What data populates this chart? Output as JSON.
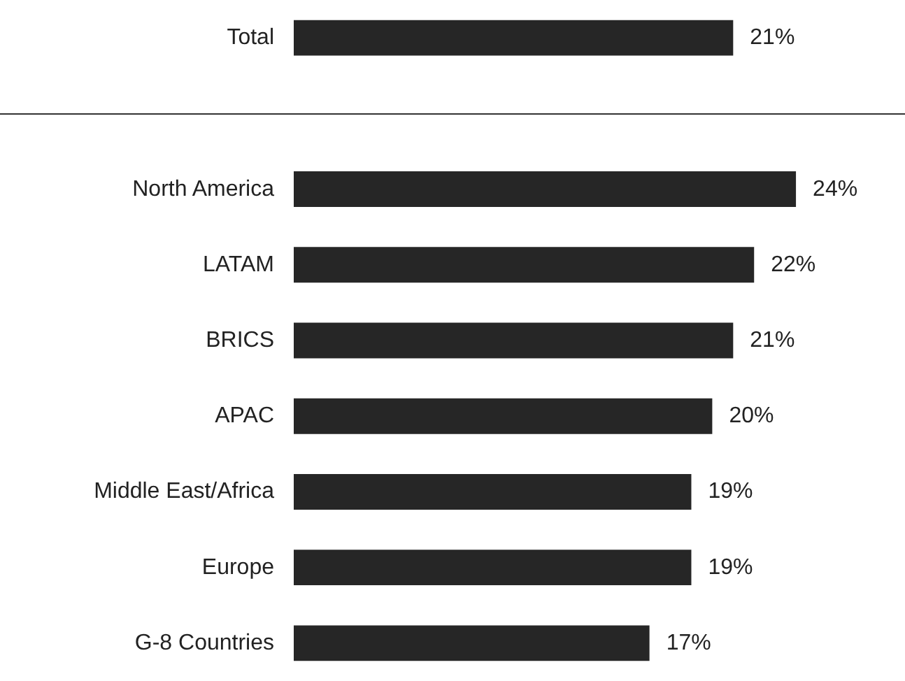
{
  "chart_data": {
    "type": "bar",
    "orientation": "horizontal",
    "categories": [
      "Total",
      null,
      "North America",
      "LATAM",
      "BRICS",
      "APAC",
      "Middle East/Africa",
      "Europe",
      "G-8 Countries"
    ],
    "values": [
      21,
      null,
      24,
      22,
      21,
      20,
      19,
      19,
      17
    ],
    "value_labels": [
      "21%",
      null,
      "24%",
      "22%",
      "21%",
      "20%",
      "19%",
      "19%",
      "17%"
    ],
    "color": "#262626"
  }
}
